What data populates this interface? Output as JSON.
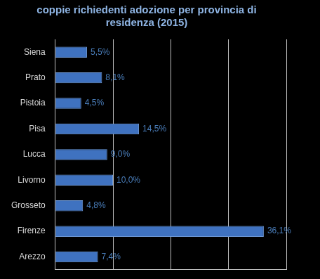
{
  "chart_data": {
    "type": "bar",
    "orientation": "horizontal",
    "title": "coppie richiedenti adozione per provincia di residenza (2015)",
    "categories": [
      "Siena",
      "Prato",
      "Pistoia",
      "Pisa",
      "Lucca",
      "Livorno",
      "Grosseto",
      "Firenze",
      "Arezzo"
    ],
    "values": [
      5.5,
      8.1,
      4.5,
      14.5,
      9.0,
      10.0,
      4.8,
      36.1,
      7.4
    ],
    "value_labels": [
      "5,5%",
      "8,1%",
      "4,5%",
      "14,5%",
      "9,0%",
      "10,0%",
      "4,8%",
      "36,1%",
      "7,4%"
    ],
    "data_labels": true,
    "color": "#3f72c0",
    "xlim": [
      0,
      40
    ],
    "xticks": [
      0,
      10,
      20,
      30,
      40
    ],
    "grid": true,
    "tick_labels": "y"
  }
}
